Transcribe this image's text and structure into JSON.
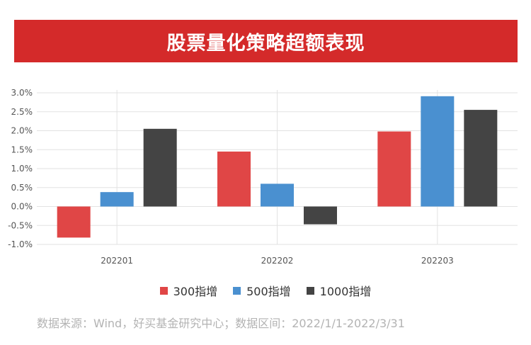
{
  "title": "股票量化策略超额表现",
  "source": "数据来源：Wind，好买基金研究中心；数据区间：2022/1/1-2022/3/31",
  "colors": {
    "header_bg": "#d42a2a",
    "s300": "#e04646",
    "s500": "#4a90d0",
    "s1000": "#444444",
    "grid": "#e2e2e2"
  },
  "chart_data": {
    "type": "bar",
    "categories": [
      "202201",
      "202202",
      "202203"
    ],
    "series": [
      {
        "name": "300指增",
        "values": [
          -0.82,
          1.45,
          1.98
        ]
      },
      {
        "name": "500指增",
        "values": [
          0.38,
          0.6,
          2.91
        ]
      },
      {
        "name": "1000指增",
        "values": [
          2.05,
          -0.47,
          2.55
        ]
      }
    ],
    "ylim": [
      -1.0,
      3.0
    ],
    "yticks": [
      "3.0%",
      "2.5%",
      "2.0%",
      "1.5%",
      "1.0%",
      "0.5%",
      "0.0%",
      "-0.5%",
      "-1.0%"
    ],
    "ytick_values": [
      3.0,
      2.5,
      2.0,
      1.5,
      1.0,
      0.5,
      0.0,
      -0.5,
      -1.0
    ],
    "grid": true,
    "legend": "bottom"
  }
}
